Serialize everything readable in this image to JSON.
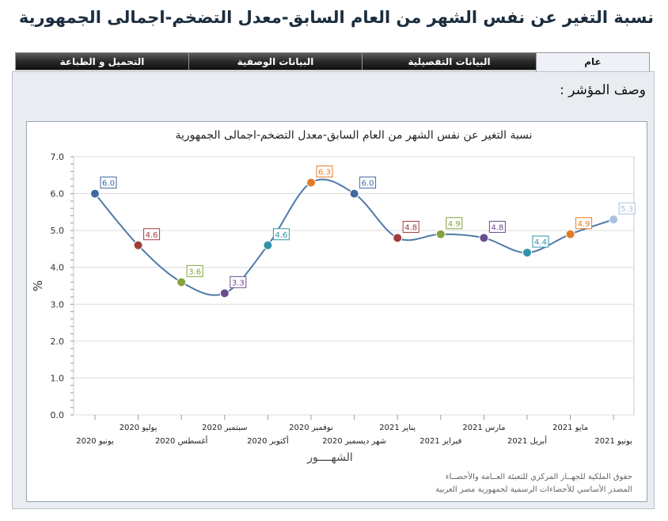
{
  "page": {
    "title": "نسبة التغير عن نفس الشهر من العام السابق-معدل التضخم-اجمالى الجمهورية",
    "indicator_description_label": "وصف المؤشر :",
    "credit_line1": "حقوق الملكية للجهــاز المركزي للتعبئة العــامة والأحصــاء",
    "credit_line2": "المصدر الأساسي للأحصاءات الرسمية لجمهورية مصر العربية"
  },
  "tabs": [
    {
      "label": "عام",
      "active": true
    },
    {
      "label": "البيانات التفصيلية",
      "active": false
    },
    {
      "label": "البيانات الوصفية",
      "active": false
    },
    {
      "label": "التحميل و الطباعة",
      "active": false
    }
  ],
  "chart_data": {
    "type": "line",
    "title": "نسبة التغير عن نفس الشهر من العام السابق-معدل التضخم-اجمالى الجمهورية",
    "xlabel": "الشهــــور",
    "ylabel": "%",
    "ylim": [
      0,
      7
    ],
    "yticks": [
      "0.0",
      "1.0",
      "2.0",
      "3.0",
      "4.0",
      "5.0",
      "6.0",
      "7.0"
    ],
    "grid": true,
    "smooth": true,
    "categories": [
      "يونيو 2020",
      "يوليو 2020",
      "أغسطس 2020",
      "سبتمبر 2020",
      "أكتوبر 2020",
      "نوفمبر 2020",
      "شهر ديسمبر 2020",
      "يناير 2021",
      "فبراير 2021",
      "مارس 2021",
      "أبريل 2021",
      "مايو 2021",
      "يونيو 2021"
    ],
    "values": [
      6.0,
      4.6,
      3.6,
      3.3,
      4.6,
      6.3,
      6.0,
      4.8,
      4.9,
      4.8,
      4.4,
      4.9,
      5.3
    ],
    "point_colors": [
      "#3f6aa1",
      "#a33b3b",
      "#84a13b",
      "#6b4c8e",
      "#2f93a8",
      "#e37b25",
      "#3f6aa1",
      "#a33b3b",
      "#84a13b",
      "#6b4c8e",
      "#2f93a8",
      "#e37b25",
      "#a9c2de"
    ],
    "line_color": "#4f7ba7"
  }
}
